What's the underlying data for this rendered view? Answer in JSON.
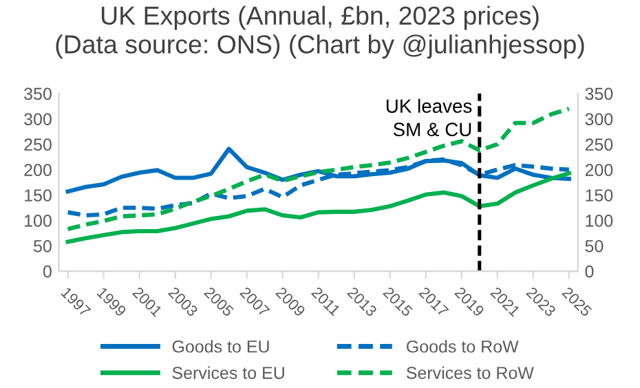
{
  "chart_data": {
    "type": "line",
    "title": "UK Exports (Annual, £bn, 2023 prices)\n(Data source: ONS) (Chart by @julianhjessop)",
    "x": [
      1997,
      1998,
      1999,
      2000,
      2001,
      2002,
      2003,
      2004,
      2005,
      2006,
      2007,
      2008,
      2009,
      2010,
      2011,
      2012,
      2013,
      2014,
      2015,
      2016,
      2017,
      2018,
      2019,
      2020,
      2021,
      2022,
      2023,
      2024,
      2025
    ],
    "series": [
      {
        "name": "Goods to EU",
        "color": "#0070c0",
        "line_style": "solid",
        "values": [
          157,
          166,
          171,
          186,
          194,
          199,
          184,
          184,
          192,
          241,
          205,
          194,
          180,
          190,
          197,
          187,
          187,
          191,
          194,
          202,
          217,
          218,
          213,
          189,
          184,
          202,
          190,
          184,
          182
        ]
      },
      {
        "name": "Goods to RoW",
        "color": "#0070c0",
        "line_style": "dashed",
        "values": [
          116,
          110,
          112,
          125,
          125,
          123,
          130,
          134,
          153,
          144,
          148,
          162,
          146,
          169,
          180,
          190,
          193,
          196,
          199,
          205,
          217,
          220,
          209,
          190,
          200,
          209,
          206,
          202,
          200
        ]
      },
      {
        "name": "Services to EU",
        "color": "#00b050",
        "line_style": "solid",
        "values": [
          58,
          65,
          71,
          77,
          79,
          79,
          85,
          94,
          103,
          108,
          119,
          122,
          110,
          106,
          116,
          117,
          117,
          121,
          128,
          139,
          151,
          155,
          148,
          128,
          133,
          155,
          169,
          182,
          193
        ]
      },
      {
        "name": "Services to RoW",
        "color": "#00b050",
        "line_style": "dashed",
        "values": [
          83,
          92,
          99,
          108,
          110,
          112,
          123,
          137,
          148,
          162,
          177,
          190,
          178,
          187,
          195,
          200,
          205,
          209,
          214,
          223,
          235,
          247,
          256,
          238,
          250,
          292,
          292,
          309,
          320
        ]
      }
    ],
    "xlim": [
      1996.5,
      2025.5
    ],
    "xticks": [
      1997,
      1999,
      2001,
      2003,
      2005,
      2007,
      2009,
      2011,
      2013,
      2015,
      2017,
      2019,
      2021,
      2023,
      2025
    ],
    "ylim": [
      0,
      350
    ],
    "yticks": [
      0,
      50,
      100,
      150,
      200,
      250,
      300,
      350
    ],
    "y2lim": [
      0,
      350
    ],
    "y2ticks": [
      0,
      50,
      100,
      150,
      200,
      250,
      300,
      350
    ],
    "ref_lines": [
      {
        "axis": "x",
        "value": 2020,
        "label": "UK leaves\nSM & CU",
        "color": "#000000",
        "line_style": "dashed"
      }
    ],
    "grid": false,
    "legend": "bottom",
    "marker": "none"
  }
}
